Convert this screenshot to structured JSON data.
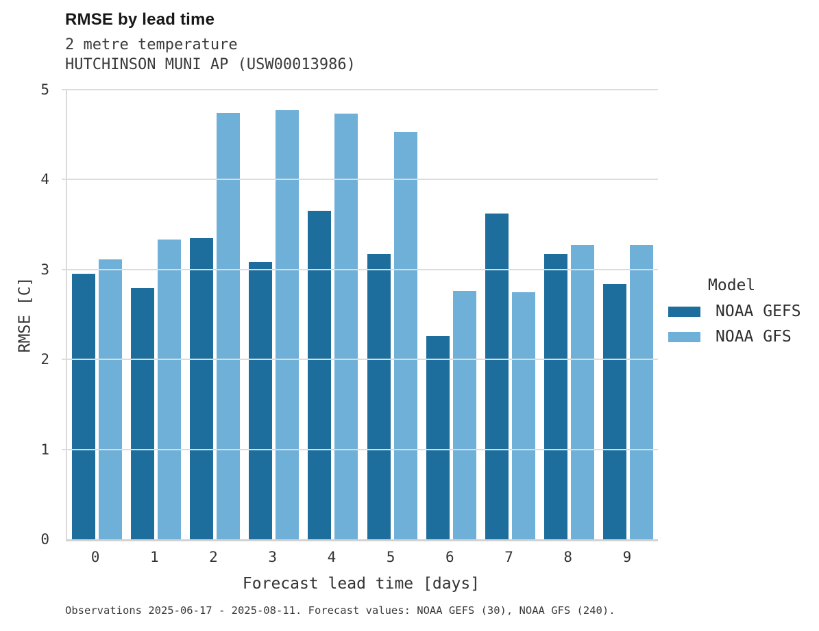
{
  "header": {
    "title": "RMSE by lead time",
    "subtitle_line1": "2 metre temperature",
    "subtitle_line2": "HUTCHINSON MUNI AP (USW00013986)"
  },
  "chart_data": {
    "type": "bar",
    "title": "RMSE by lead time",
    "subtitle": [
      "2 metre temperature",
      "HUTCHINSON MUNI AP (USW00013986)"
    ],
    "categories": [
      "0",
      "1",
      "2",
      "3",
      "4",
      "5",
      "6",
      "7",
      "8",
      "9"
    ],
    "series": [
      {
        "name": "NOAA GEFS",
        "color": "#1d6e9d",
        "values": [
          2.95,
          2.79,
          3.35,
          3.08,
          3.65,
          3.17,
          2.26,
          3.62,
          3.17,
          2.84
        ]
      },
      {
        "name": "NOAA GFS",
        "color": "#6fb0d8",
        "values": [
          3.11,
          3.33,
          4.74,
          4.77,
          4.73,
          4.53,
          2.76,
          2.75,
          3.27,
          3.27
        ]
      }
    ],
    "xlabel": "Forecast lead time [days]",
    "ylabel": "RMSE [C]",
    "ylim": [
      0,
      5
    ],
    "yticks": [
      0,
      1,
      2,
      3,
      4,
      5
    ],
    "grid": true,
    "legend_title": "Model",
    "legend_position": "right"
  },
  "footer": {
    "note": "Observations 2025-06-17 - 2025-08-11. Forecast values: NOAA GEFS (30), NOAA GFS (240)."
  },
  "colors": {
    "gefs_bar": "#1d6e9d",
    "gfs_bar": "#6fb0d8",
    "gridline": "#dcdcdc",
    "axis_spine": "#d2d2d2",
    "text": "#333333",
    "title_text": "#171717"
  }
}
